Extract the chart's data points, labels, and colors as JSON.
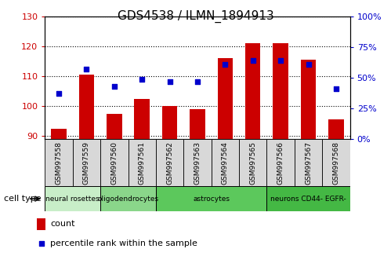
{
  "title": "GDS4538 / ILMN_1894913",
  "samples": [
    "GSM997558",
    "GSM997559",
    "GSM997560",
    "GSM997561",
    "GSM997562",
    "GSM997563",
    "GSM997564",
    "GSM997565",
    "GSM997566",
    "GSM997567",
    "GSM997568"
  ],
  "bar_values": [
    92.5,
    110.5,
    97.5,
    102.5,
    100.0,
    99.0,
    116.0,
    121.0,
    121.0,
    115.5,
    95.5
  ],
  "dot_values_pct": [
    37,
    57,
    43,
    49,
    47,
    47,
    61,
    64,
    64,
    61,
    41
  ],
  "bar_bottom": 89,
  "left_ylim": [
    89,
    130
  ],
  "right_ylim": [
    0,
    100
  ],
  "left_yticks": [
    90,
    100,
    110,
    120,
    130
  ],
  "right_yticks": [
    0,
    25,
    50,
    75,
    100
  ],
  "right_yticklabels": [
    "0%",
    "25%",
    "50%",
    "75%",
    "100%"
  ],
  "cell_types": [
    {
      "label": "neural rosettes",
      "start": 0,
      "end": 1,
      "color": "#c8eec8"
    },
    {
      "label": "oligodendrocytes",
      "start": 2,
      "end": 3,
      "color": "#90d890"
    },
    {
      "label": "astrocytes",
      "start": 4,
      "end": 7,
      "color": "#6ec86e"
    },
    {
      "label": "neurons CD44- EGFR-",
      "start": 8,
      "end": 10,
      "color": "#50c050"
    }
  ],
  "bar_color": "#cc0000",
  "dot_color": "#0000cc",
  "bar_width": 0.55,
  "left_tick_color": "#cc0000",
  "right_tick_color": "#0000cc",
  "legend_labels": [
    "count",
    "percentile rank within the sample"
  ],
  "cell_type_label": "cell type",
  "bg_gray": "#d8d8d8"
}
